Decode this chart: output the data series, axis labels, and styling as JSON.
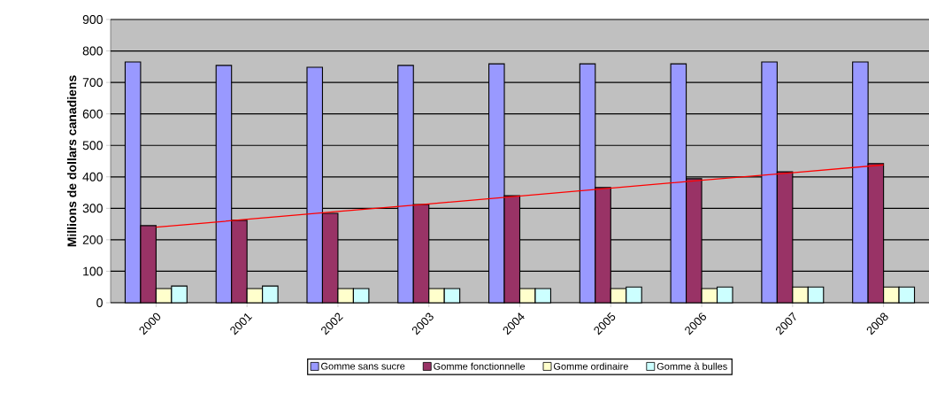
{
  "chart_data": {
    "type": "bar",
    "ylabel": "Millions de dollars canadiens",
    "categories": [
      "2000",
      "2001",
      "2002",
      "2003",
      "2004",
      "2005",
      "2006",
      "2007",
      "2008"
    ],
    "series": [
      {
        "name": "Gomme sans sucre",
        "color": "#9999ff",
        "values": [
          765,
          754,
          748,
          754,
          759,
          759,
          759,
          765,
          765
        ]
      },
      {
        "name": "Gomme fonctionnelle",
        "color": "#993366",
        "values": [
          245,
          262,
          284,
          312,
          340,
          366,
          394,
          416,
          442
        ]
      },
      {
        "name": "Gomme ordinaire",
        "color": "#ffffcc",
        "values": [
          45,
          45,
          45,
          45,
          45,
          45,
          45,
          50,
          50
        ]
      },
      {
        "name": "Gomme à bulles",
        "color": "#ccffff",
        "values": [
          53,
          53,
          45,
          45,
          45,
          50,
          50,
          50,
          50
        ]
      },
      {
        "type": "line",
        "color": "#ff0000",
        "values": [
          240,
          265,
          290,
          314,
          339,
          364,
          389,
          413,
          438
        ]
      }
    ],
    "ylim": [
      0,
      900
    ],
    "yticks": [
      0,
      100,
      200,
      300,
      400,
      500,
      600,
      700,
      800,
      900
    ],
    "grid": "y",
    "legend": "bottom"
  }
}
